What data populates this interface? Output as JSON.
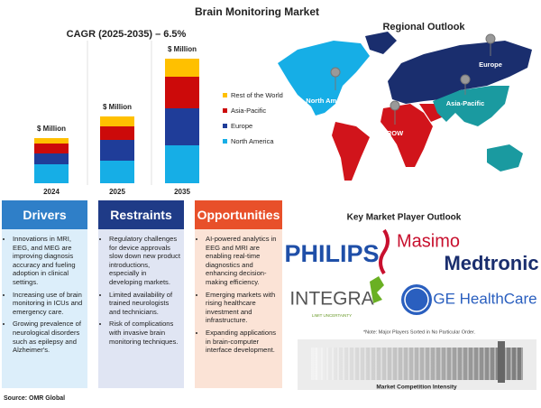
{
  "chart_data": {
    "type": "bar",
    "stacked": true,
    "title": "Brain Monitoring Market",
    "subtitle": "CAGR (2025-2035) – 6.5%",
    "categories": [
      "2024",
      "2025",
      "2035"
    ],
    "total_labels": [
      "$ Million",
      "$ Million",
      "$ Million"
    ],
    "series": [
      {
        "name": "North America",
        "color": "#16aee6",
        "values": [
          21,
          25,
          42
        ]
      },
      {
        "name": "Europe",
        "color": "#1f3d99",
        "values": [
          12,
          23,
          41
        ]
      },
      {
        "name": "Asia-Pacific",
        "color": "#cc0a0a",
        "values": [
          11,
          15,
          35
        ]
      },
      {
        "name": "Rest of the World",
        "color": "#ffc000",
        "values": [
          6,
          11,
          20
        ]
      }
    ]
  },
  "map": {
    "title": "Regional Outlook",
    "regions": [
      "North America",
      "Europe",
      "Asia-Pacific",
      "ROW"
    ]
  },
  "drivers": {
    "title": "Drivers",
    "items": [
      "Innovations in MRI, EEG, and MEG are improving diagnosis accuracy and fueling adoption in clinical settings.",
      "Increasing use of brain monitoring in ICUs and emergency care.",
      "Growing prevalence of neurological disorders such as epilepsy and Alzheimer's."
    ]
  },
  "restraints": {
    "title": "Restraints",
    "items": [
      "Regulatory challenges for device approvals slow down new product introductions, especially in developing markets.",
      "Limited availability of trained neurologists and technicians.",
      "Risk of complications with invasive brain monitoring techniques."
    ]
  },
  "opportunities": {
    "title": "Opportunities",
    "items": [
      "AI-powered analytics in EEG and MRI are enabling real-time diagnostics and enhancing decision-making efficiency.",
      "Emerging markets with rising healthcare investment and infrastructure.",
      "Expanding applications in brain-computer interface development."
    ]
  },
  "players": {
    "title": "Key Market Player Outlook",
    "logos": [
      "PHILIPS",
      "Masimo",
      "Medtronic",
      "INTEGRA",
      "LIMIT UNCERTAINTY",
      "GE HealthCare"
    ],
    "note": "*Note: Major Players Sorted in No Particular Order.",
    "intensity_label": "Market Competition Intensity"
  },
  "source": "Source: OMR Global"
}
